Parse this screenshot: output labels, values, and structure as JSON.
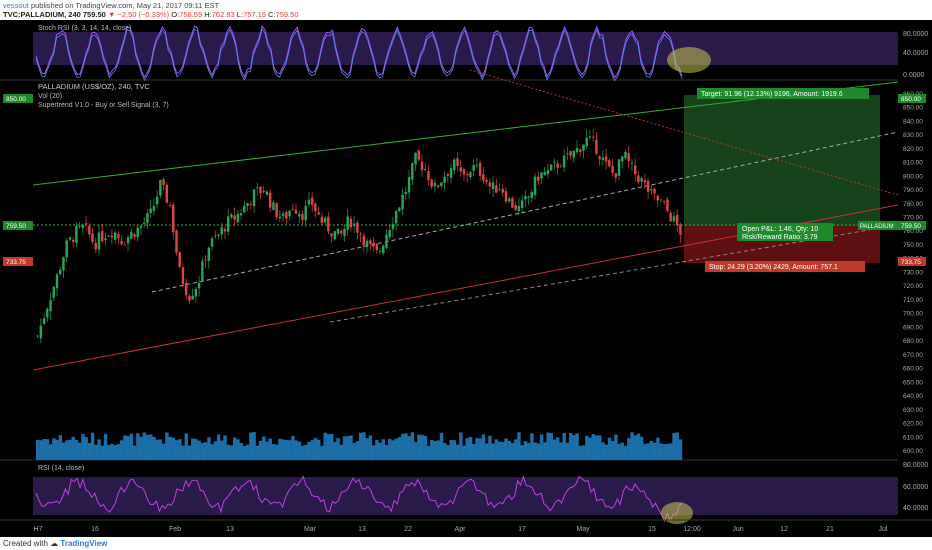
{
  "header": {
    "user": "vessout",
    "published": "published on TradingView.com, May 21, 2017 09:11 EST"
  },
  "symbol_bar": {
    "symbol": "TVC:PALLADIUM, 240",
    "last": "759.50",
    "change": "−2.50 (−0.33%)",
    "O": "758.59",
    "H": "762.83",
    "L": "757.19",
    "C": "759.50"
  },
  "footer": {
    "created": "Created with",
    "brand": "TradingView"
  },
  "panes": {
    "stoch": {
      "label": "Stoch RSI (3, 3, 14, 14, close)",
      "ticks": [
        "80.0000",
        "40.0000",
        "0.0000"
      ]
    },
    "main": {
      "title": "PALLADIUM (US$/OZ), 240, TVC",
      "vol": "Vol (20)",
      "supertrend": "Supertrend V1.0 - Buy or Sell Signal (3, 7)",
      "price_ticks": [
        "860.00",
        "850.00",
        "840.00",
        "830.00",
        "820.00",
        "810.00",
        "800.00",
        "790.00",
        "780.00",
        "770.00",
        "760.00",
        "750.00",
        "740.00",
        "730.00",
        "720.00",
        "710.00",
        "700.00",
        "690.00",
        "680.00",
        "670.00",
        "660.00",
        "650.00",
        "640.00",
        "630.00",
        "620.00",
        "610.00",
        "600.00"
      ],
      "target_label": "Target: 91.96 (12.13%) 9196, Amount: 1919.6",
      "pnl_label_1": "Open P&L: 1.46, Qty: 10",
      "pnl_label_2": "Risk/Reward Ratio: 3.79",
      "stop_label": "Stop: 24.29 (3.20%) 2429, Amount: 757.1",
      "right_tags": {
        "top": "850.00",
        "last": "759.50",
        "stop": "733.75",
        "name": "PALLADIUM"
      },
      "left_tags": {
        "top": "850.00",
        "last": "759.50",
        "stop": "733.75"
      }
    },
    "rsi": {
      "label": "RSI (14, close)",
      "ticks": [
        "80.0000",
        "60.0000",
        "40.0000"
      ]
    }
  },
  "x_axis": [
    "H7",
    "16",
    "Feb",
    "13",
    "Mar",
    "13",
    "22",
    "Apr",
    "17",
    "May",
    "15",
    "12:00",
    "Jun",
    "12",
    "21",
    "Jul"
  ],
  "colors": {
    "bull": "#26a65b",
    "bear": "#e04545",
    "stoch": "#a64dff",
    "rsi": "#c040e0",
    "vol": "#1c6fa8"
  },
  "chart_data": {
    "type": "candlestick",
    "title": "PALLADIUM (US$/OZ), 240, TVC",
    "y_range": [
      600,
      865
    ],
    "last_price": 759.5,
    "target_price": 850.0,
    "stop_price": 733.75,
    "close_path": [
      683,
      705,
      725,
      748,
      758,
      762,
      750,
      757,
      760,
      752,
      758,
      763,
      772,
      793,
      778,
      730,
      712,
      722,
      748,
      755,
      765,
      770,
      778,
      787,
      790,
      775,
      768,
      778,
      772,
      780,
      767,
      760,
      755,
      768,
      760,
      748,
      742,
      760,
      775,
      790,
      812,
      805,
      790,
      800,
      808,
      798,
      806,
      802,
      790,
      792,
      780,
      775,
      785,
      800,
      802,
      808,
      812,
      818,
      826,
      822,
      808,
      800,
      815,
      803,
      795,
      785,
      780,
      770,
      759
    ]
  }
}
